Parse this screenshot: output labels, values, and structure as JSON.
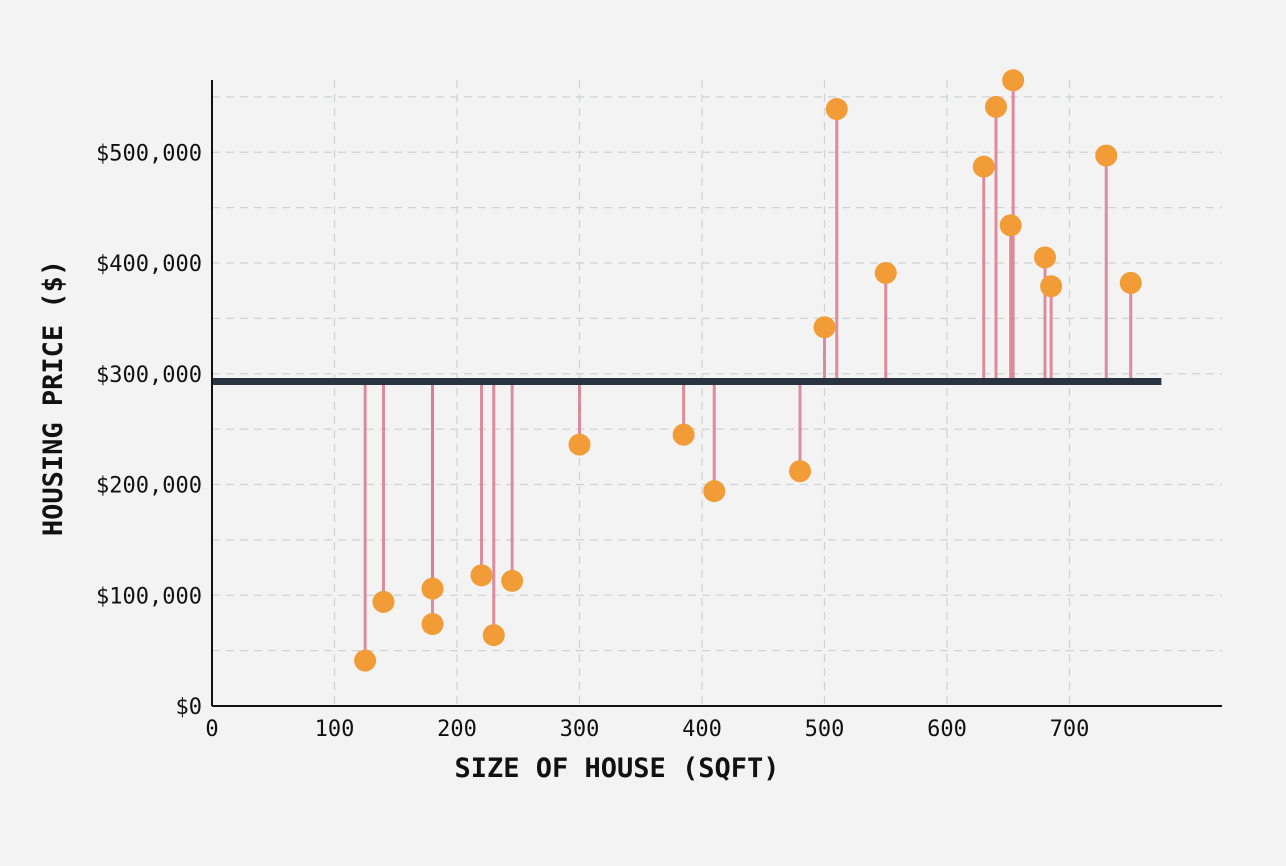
{
  "chart_data": {
    "type": "scatter",
    "title": "",
    "xlabel": "SIZE OF HOUSE (SQFT)",
    "ylabel": "HOUSING PRICE ($)",
    "xlim": [
      0,
      825
    ],
    "ylim": [
      0,
      570000
    ],
    "x_ticks": [
      0,
      100,
      200,
      300,
      400,
      500,
      600,
      700
    ],
    "x_tick_labels": [
      "0",
      "100",
      "200",
      "300",
      "400",
      "500",
      "600",
      "700"
    ],
    "y_ticks": [
      0,
      100000,
      200000,
      300000,
      400000,
      500000
    ],
    "y_tick_labels": [
      "$0",
      "$100,000",
      "$200,000",
      "$300,000",
      "$400,000",
      "$500,000"
    ],
    "grid": true,
    "mean_line": {
      "label": "mean price",
      "y": 293000,
      "x_start": 0,
      "x_end": 775,
      "color": "#2a3342"
    },
    "point_color": "#f29c38",
    "residual_color": "#d9798f",
    "points": [
      {
        "x": 125,
        "y": 41000
      },
      {
        "x": 140,
        "y": 94000
      },
      {
        "x": 180,
        "y": 106000
      },
      {
        "x": 180,
        "y": 74000
      },
      {
        "x": 220,
        "y": 118000
      },
      {
        "x": 230,
        "y": 64000
      },
      {
        "x": 245,
        "y": 113000
      },
      {
        "x": 300,
        "y": 236000
      },
      {
        "x": 385,
        "y": 245000
      },
      {
        "x": 410,
        "y": 194000
      },
      {
        "x": 480,
        "y": 212000
      },
      {
        "x": 500,
        "y": 342000
      },
      {
        "x": 510,
        "y": 539000
      },
      {
        "x": 550,
        "y": 391000
      },
      {
        "x": 630,
        "y": 487000
      },
      {
        "x": 640,
        "y": 541000
      },
      {
        "x": 652,
        "y": 434000
      },
      {
        "x": 654,
        "y": 565000
      },
      {
        "x": 680,
        "y": 405000
      },
      {
        "x": 685,
        "y": 379000
      },
      {
        "x": 730,
        "y": 497000
      },
      {
        "x": 750,
        "y": 382000
      }
    ]
  }
}
